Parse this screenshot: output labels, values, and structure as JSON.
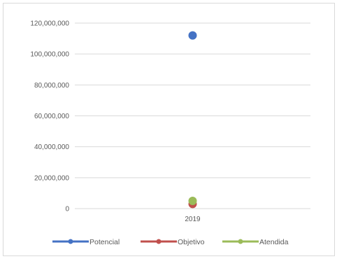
{
  "chart_data": {
    "type": "scatter",
    "categories": [
      "2019"
    ],
    "ylim": [
      0,
      120000000
    ],
    "yticks": [
      0,
      20000000,
      40000000,
      60000000,
      80000000,
      100000000,
      120000000
    ],
    "ytick_labels": [
      "0",
      "20,000,000",
      "40,000,000",
      "60,000,000",
      "80,000,000",
      "100,000,000",
      "120,000,000"
    ],
    "grid": true,
    "legend_position": "bottom",
    "series": [
      {
        "name": "Potencial",
        "values": [
          112000000
        ],
        "color": "#4472C4"
      },
      {
        "name": "Objetivo",
        "values": [
          3000000
        ],
        "color": "#C0504D"
      },
      {
        "name": "Atendida",
        "values": [
          5000000
        ],
        "color": "#9BBB59"
      }
    ]
  }
}
